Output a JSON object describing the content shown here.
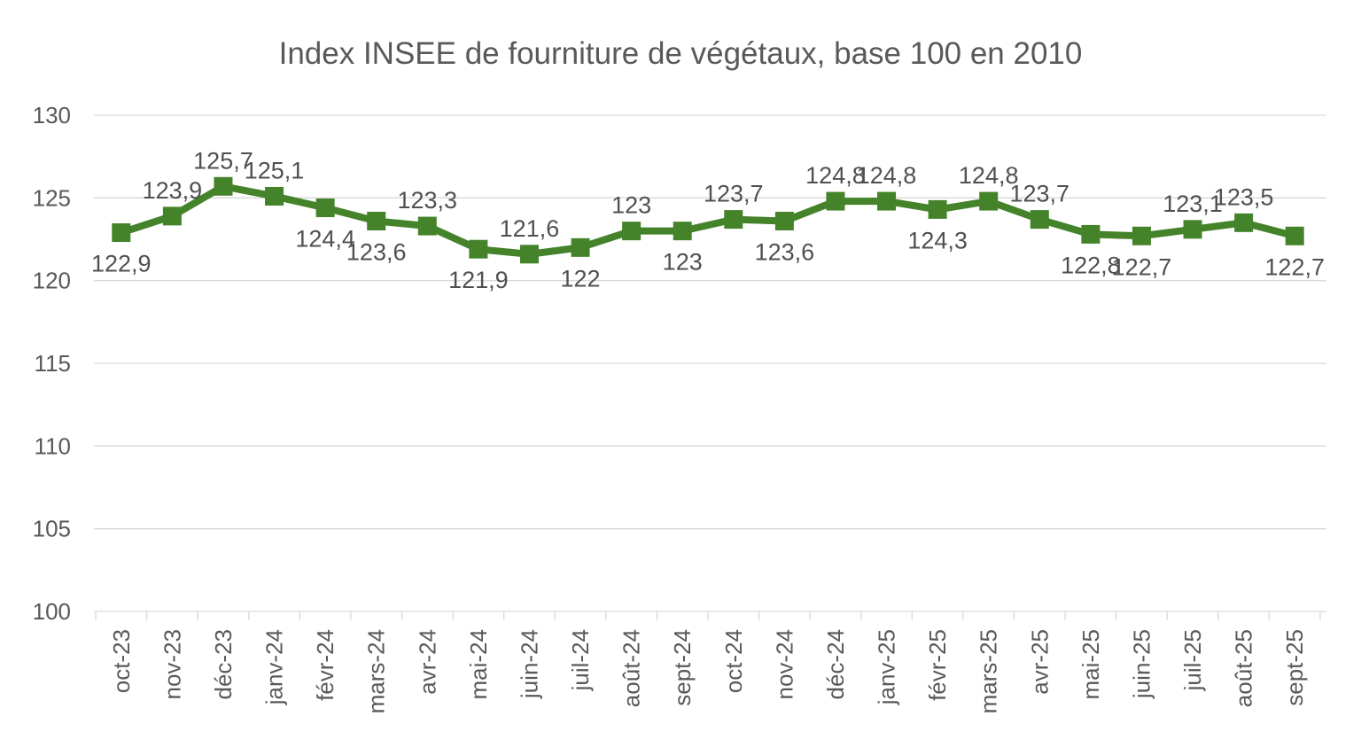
{
  "chart_data": {
    "type": "line",
    "title": "Index INSEE de fourniture de végétaux, base 100 en 2010",
    "categories": [
      "oct-23",
      "nov-23",
      "déc-23",
      "janv-24",
      "févr-24",
      "mars-24",
      "avr-24",
      "mai-24",
      "juin-24",
      "juil-24",
      "août-24",
      "sept-24",
      "oct-24",
      "nov-24",
      "déc-24",
      "janv-25",
      "févr-25",
      "mars-25",
      "avr-25",
      "mai-25",
      "juin-25",
      "juil-25",
      "août-25",
      "sept-25"
    ],
    "values": [
      122.9,
      123.9,
      125.7,
      125.1,
      124.4,
      123.6,
      123.3,
      121.9,
      121.6,
      122,
      123,
      123,
      123.7,
      123.6,
      124.8,
      124.8,
      124.3,
      124.8,
      123.7,
      122.8,
      122.7,
      123.1,
      123.5,
      122.7
    ],
    "data_labels": [
      "122,9",
      "123,9",
      "125,7",
      "125,1",
      "124,4",
      "123,6",
      "123,3",
      "121,9",
      "121,6",
      "122",
      "123",
      "123",
      "123,7",
      "123,6",
      "124,8",
      "124,8",
      "124,3",
      "124,8",
      "123,7",
      "122,8",
      "122,7",
      "123,1",
      "123,5",
      "122,7"
    ],
    "label_positions": [
      "below",
      "above",
      "above",
      "above",
      "below",
      "below",
      "above",
      "below",
      "above",
      "below",
      "above",
      "below",
      "above",
      "below",
      "above",
      "above",
      "below",
      "above",
      "above",
      "below",
      "below",
      "above",
      "above",
      "below"
    ],
    "xlabel": "",
    "ylabel": "",
    "ylim": [
      100,
      130
    ],
    "yticks": [
      100,
      105,
      110,
      115,
      120,
      125,
      130
    ],
    "grid": "horizontal",
    "legend": "none",
    "marker": "square",
    "x_label_rotation": -90,
    "colors": {
      "line": "#44832A",
      "marker": "#44832A",
      "grid": "#d9d9d9",
      "axis_text": "#595959",
      "data_label_text": "#505050",
      "title_text": "#595959",
      "background": "#ffffff"
    }
  }
}
